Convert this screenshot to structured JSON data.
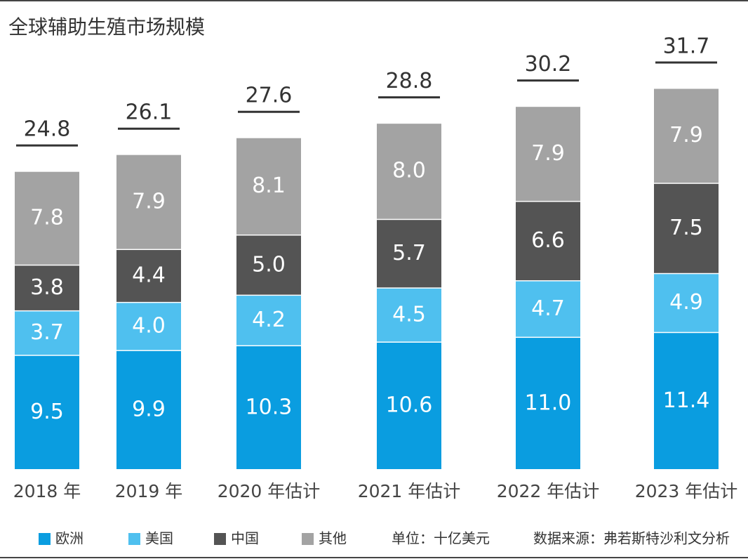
{
  "chart_data": {
    "type": "stacked-bar",
    "title": "全球辅助生殖市场规模",
    "categories": [
      "2018 年",
      "2019 年",
      "2020 年估计",
      "2021 年估计",
      "2022 年估计",
      "2023 年估计"
    ],
    "series": [
      {
        "name": "欧洲",
        "color": "#0a9de0",
        "values": [
          9.5,
          9.9,
          10.3,
          10.6,
          11.0,
          11.4
        ],
        "value_labels": [
          "9.5",
          "9.9",
          "10.3",
          "10.6",
          "11.0",
          "11.4"
        ]
      },
      {
        "name": "美国",
        "color": "#4fc0ef",
        "values": [
          3.7,
          4.0,
          4.2,
          4.5,
          4.7,
          4.9
        ],
        "value_labels": [
          "3.7",
          "4.0",
          "4.2",
          "4.5",
          "4.7",
          "4.9"
        ]
      },
      {
        "name": "中国",
        "color": "#545454",
        "values": [
          3.8,
          4.4,
          5.0,
          5.7,
          6.6,
          7.5
        ],
        "value_labels": [
          "3.8",
          "4.4",
          "5.0",
          "5.7",
          "6.6",
          "7.5"
        ]
      },
      {
        "name": "其他",
        "color": "#a3a3a3",
        "values": [
          7.8,
          7.9,
          8.1,
          8.0,
          7.9,
          7.9
        ],
        "value_labels": [
          "7.8",
          "7.9",
          "8.1",
          "8.0",
          "7.9",
          "7.9"
        ]
      }
    ],
    "totals": [
      24.8,
      26.1,
      27.6,
      28.8,
      30.2,
      31.7
    ],
    "unit": "单位：十亿美元",
    "source": "数据来源：弗若斯特沙利文分析"
  }
}
